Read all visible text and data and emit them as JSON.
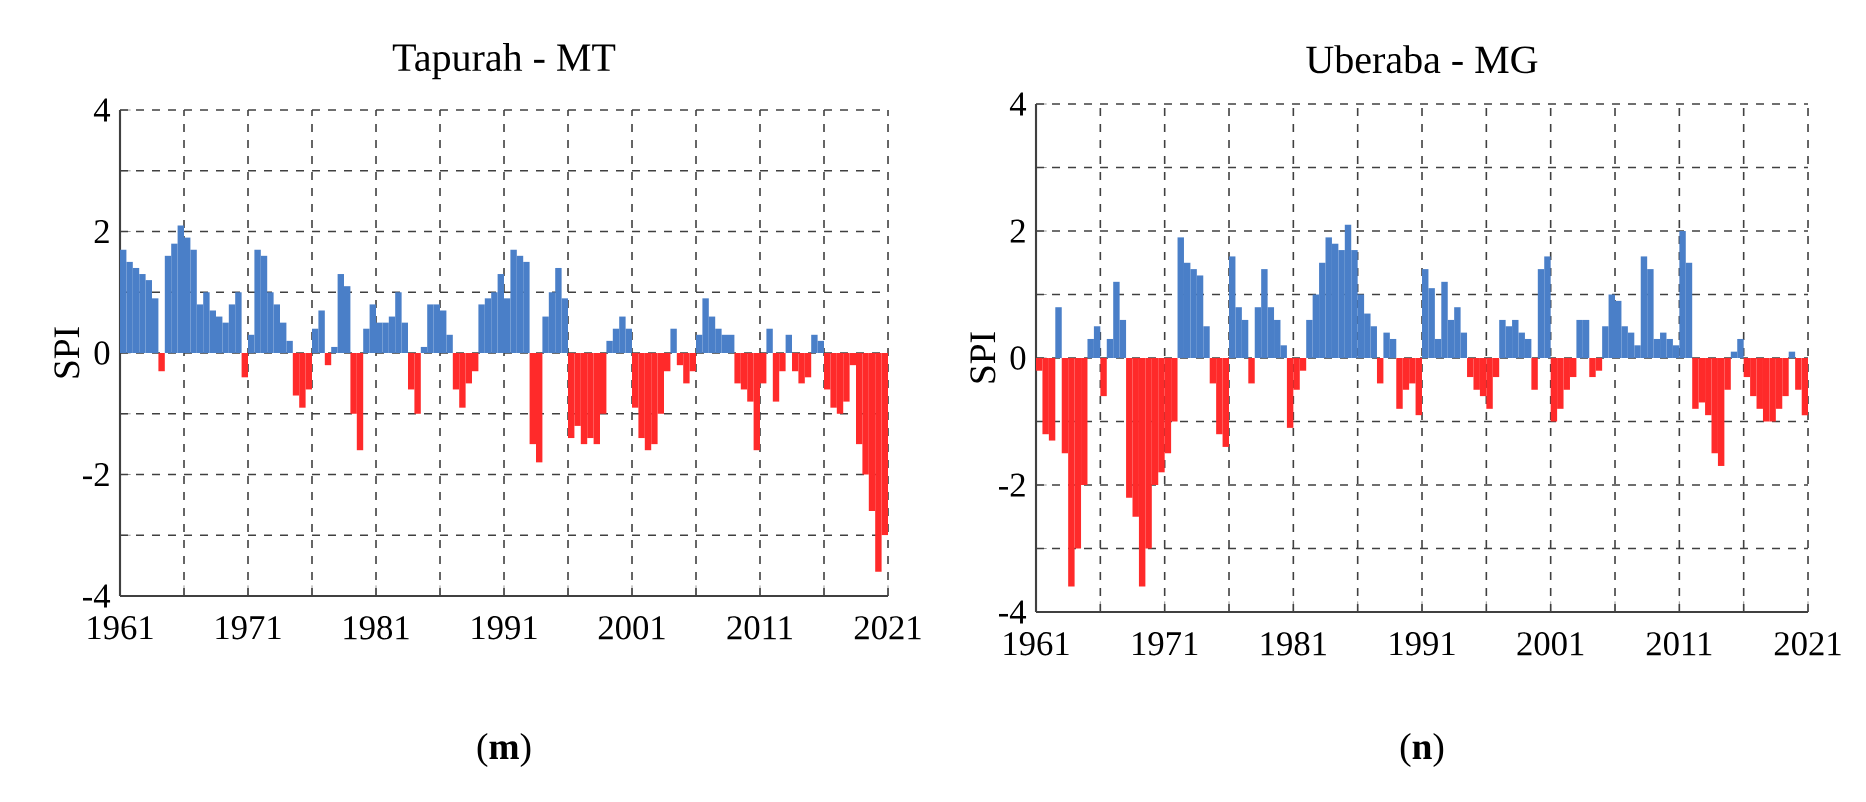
{
  "chart_data": [
    {
      "type": "bar",
      "title": "Tapurah - MT",
      "ylabel": "SPI",
      "annotations": [
        "(**m**)"
      ],
      "grid": true,
      "xlim": [
        1961,
        2021
      ],
      "ylim": [
        -4,
        4
      ],
      "xticks": [
        1961,
        {
          "value": 1966,
          "label": null
        },
        1971,
        {
          "value": 1976,
          "label": null
        },
        1981,
        {
          "value": 1986,
          "label": null
        },
        1991,
        {
          "value": 1996,
          "label": null
        },
        2001,
        {
          "value": 2006,
          "label": null
        },
        2011,
        {
          "value": 2016,
          "label": null
        },
        2021
      ],
      "yticks": [
        -4,
        {
          "value": -3,
          "label": null
        },
        -2,
        {
          "value": -1,
          "label": null
        },
        0,
        {
          "value": 1,
          "label": null
        },
        2,
        {
          "value": 3,
          "label": null
        },
        4
      ],
      "x": [
        1961.25,
        1961.75,
        1962.25,
        1962.75,
        1963.25,
        1963.75,
        1964.25,
        1964.75,
        1965.25,
        1965.75,
        1966.25,
        1966.75,
        1967.25,
        1967.75,
        1968.25,
        1968.75,
        1969.25,
        1969.75,
        1970.25,
        1970.75,
        1971.25,
        1971.75,
        1972.25,
        1972.75,
        1973.25,
        1973.75,
        1974.25,
        1974.75,
        1975.25,
        1975.75,
        1976.25,
        1976.75,
        1977.25,
        1977.75,
        1978.25,
        1978.75,
        1979.25,
        1979.75,
        1980.25,
        1980.75,
        1981.25,
        1981.75,
        1982.25,
        1982.75,
        1983.25,
        1983.75,
        1984.25,
        1984.75,
        1985.25,
        1985.75,
        1986.25,
        1986.75,
        1987.25,
        1987.75,
        1988.25,
        1988.75,
        1989.25,
        1989.75,
        1990.25,
        1990.75,
        1991.25,
        1991.75,
        1992.25,
        1992.75,
        1993.25,
        1993.75,
        1994.25,
        1994.75,
        1995.25,
        1995.75,
        1996.25,
        1996.75,
        1997.25,
        1997.75,
        1998.25,
        1998.75,
        1999.25,
        1999.75,
        2000.25,
        2000.75,
        2001.25,
        2001.75,
        2002.25,
        2002.75,
        2003.25,
        2003.75,
        2004.25,
        2004.75,
        2005.25,
        2005.75,
        2006.25,
        2006.75,
        2007.25,
        2007.75,
        2008.25,
        2008.75,
        2009.25,
        2009.75,
        2010.25,
        2010.75,
        2011.25,
        2011.75,
        2012.25,
        2012.75,
        2013.25,
        2013.75,
        2014.25,
        2014.75,
        2015.25,
        2015.75,
        2016.25,
        2016.75,
        2017.25,
        2017.75,
        2018.25,
        2018.75,
        2019.25,
        2019.75,
        2020.25,
        2020.75
      ],
      "values": [
        1.7,
        1.5,
        1.4,
        1.3,
        1.2,
        0.9,
        -0.3,
        1.6,
        1.8,
        2.1,
        1.9,
        1.7,
        0.8,
        1.0,
        0.7,
        0.6,
        0.5,
        0.8,
        1.0,
        -0.4,
        0.3,
        1.7,
        1.6,
        1.0,
        0.8,
        0.5,
        0.2,
        -0.7,
        -0.9,
        -0.6,
        0.4,
        0.7,
        -0.2,
        0.1,
        1.3,
        1.1,
        -1.0,
        -1.6,
        0.4,
        0.8,
        0.5,
        0.5,
        0.6,
        1.0,
        0.5,
        -0.6,
        -1.0,
        0.1,
        0.8,
        0.8,
        0.7,
        0.3,
        -0.6,
        -0.9,
        -0.5,
        -0.3,
        0.8,
        0.9,
        1.0,
        1.3,
        0.9,
        1.7,
        1.6,
        1.5,
        -1.5,
        -1.8,
        0.6,
        1.0,
        1.4,
        0.9,
        -1.4,
        -1.2,
        -1.5,
        -1.4,
        -1.5,
        -1.0,
        0.2,
        0.4,
        0.6,
        0.4,
        -0.9,
        -1.4,
        -1.6,
        -1.5,
        -1.0,
        -0.3,
        0.4,
        -0.2,
        -0.5,
        -0.3,
        0.3,
        0.9,
        0.6,
        0.4,
        0.3,
        0.3,
        -0.5,
        -0.6,
        -0.8,
        -1.6,
        -0.5,
        0.4,
        -0.8,
        -0.3,
        0.3,
        -0.3,
        -0.5,
        -0.4,
        0.3,
        0.2,
        -0.6,
        -0.9,
        -1.0,
        -0.8,
        -0.2,
        -1.5,
        -2.0,
        -2.6,
        -3.6,
        -3.0
      ],
      "colors": [
        "#4a7fc8",
        "#4a7fc8",
        "#4a7fc8",
        "#4a7fc8",
        "#4a7fc8",
        "#4a7fc8",
        "#ff2a2a",
        "#4a7fc8",
        "#4a7fc8",
        "#4a7fc8",
        "#4a7fc8",
        "#4a7fc8",
        "#4a7fc8",
        "#4a7fc8",
        "#4a7fc8",
        "#4a7fc8",
        "#4a7fc8",
        "#4a7fc8",
        "#4a7fc8",
        "#ff2a2a",
        "#4a7fc8",
        "#4a7fc8",
        "#4a7fc8",
        "#4a7fc8",
        "#4a7fc8",
        "#4a7fc8",
        "#4a7fc8",
        "#ff2a2a",
        "#ff2a2a",
        "#ff2a2a",
        "#4a7fc8",
        "#4a7fc8",
        "#ff2a2a",
        "#4a7fc8",
        "#4a7fc8",
        "#4a7fc8",
        "#ff2a2a",
        "#ff2a2a",
        "#4a7fc8",
        "#4a7fc8",
        "#4a7fc8",
        "#4a7fc8",
        "#4a7fc8",
        "#4a7fc8",
        "#4a7fc8",
        "#ff2a2a",
        "#ff2a2a",
        "#4a7fc8",
        "#4a7fc8",
        "#4a7fc8",
        "#4a7fc8",
        "#4a7fc8",
        "#ff2a2a",
        "#ff2a2a",
        "#ff2a2a",
        "#ff2a2a",
        "#4a7fc8",
        "#4a7fc8",
        "#4a7fc8",
        "#4a7fc8",
        "#4a7fc8",
        "#4a7fc8",
        "#4a7fc8",
        "#4a7fc8",
        "#ff2a2a",
        "#ff2a2a",
        "#4a7fc8",
        "#4a7fc8",
        "#4a7fc8",
        "#4a7fc8",
        "#ff2a2a",
        "#ff2a2a",
        "#ff2a2a",
        "#ff2a2a",
        "#ff2a2a",
        "#ff2a2a",
        "#4a7fc8",
        "#4a7fc8",
        "#4a7fc8",
        "#4a7fc8",
        "#ff2a2a",
        "#ff2a2a",
        "#ff2a2a",
        "#ff2a2a",
        "#ff2a2a",
        "#ff2a2a",
        "#4a7fc8",
        "#ff2a2a",
        "#ff2a2a",
        "#ff2a2a",
        "#4a7fc8",
        "#4a7fc8",
        "#4a7fc8",
        "#4a7fc8",
        "#4a7fc8",
        "#4a7fc8",
        "#ff2a2a",
        "#ff2a2a",
        "#ff2a2a",
        "#ff2a2a",
        "#ff2a2a",
        "#4a7fc8",
        "#ff2a2a",
        "#ff2a2a",
        "#4a7fc8",
        "#ff2a2a",
        "#ff2a2a",
        "#ff2a2a",
        "#4a7fc8",
        "#4a7fc8",
        "#ff2a2a",
        "#ff2a2a",
        "#ff2a2a",
        "#ff2a2a",
        "#ff2a2a",
        "#ff2a2a",
        "#ff2a2a",
        "#ff2a2a",
        "#ff2a2a",
        "#ff2a2a"
      ]
    },
    {
      "type": "bar",
      "title": "Uberaba - MG",
      "ylabel": "SPI",
      "annotations": [
        "(**n**)"
      ],
      "grid": true,
      "xlim": [
        1961,
        2021
      ],
      "ylim": [
        -4,
        4
      ],
      "xticks": [
        1961,
        {
          "value": 1966,
          "label": null
        },
        1971,
        {
          "value": 1976,
          "label": null
        },
        1981,
        {
          "value": 1986,
          "label": null
        },
        1991,
        {
          "value": 1996,
          "label": null
        },
        2001,
        {
          "value": 2006,
          "label": null
        },
        2011,
        {
          "value": 2016,
          "label": null
        },
        2021
      ],
      "yticks": [
        -4,
        {
          "value": -3,
          "label": null
        },
        -2,
        {
          "value": -1,
          "label": null
        },
        0,
        {
          "value": 1,
          "label": null
        },
        2,
        {
          "value": 3,
          "label": null
        },
        4
      ],
      "x": [
        1961.25,
        1961.75,
        1962.25,
        1962.75,
        1963.25,
        1963.75,
        1964.25,
        1964.75,
        1965.25,
        1965.75,
        1966.25,
        1966.75,
        1967.25,
        1967.75,
        1968.25,
        1968.75,
        1969.25,
        1969.75,
        1970.25,
        1970.75,
        1971.25,
        1971.75,
        1972.25,
        1972.75,
        1973.25,
        1973.75,
        1974.25,
        1974.75,
        1975.25,
        1975.75,
        1976.25,
        1976.75,
        1977.25,
        1977.75,
        1978.25,
        1978.75,
        1979.25,
        1979.75,
        1980.25,
        1980.75,
        1981.25,
        1981.75,
        1982.25,
        1982.75,
        1983.25,
        1983.75,
        1984.25,
        1984.75,
        1985.25,
        1985.75,
        1986.25,
        1986.75,
        1987.25,
        1987.75,
        1988.25,
        1988.75,
        1989.25,
        1989.75,
        1990.25,
        1990.75,
        1991.25,
        1991.75,
        1992.25,
        1992.75,
        1993.25,
        1993.75,
        1994.25,
        1994.75,
        1995.25,
        1995.75,
        1996.25,
        1996.75,
        1997.25,
        1997.75,
        1998.25,
        1998.75,
        1999.25,
        1999.75,
        2000.25,
        2000.75,
        2001.25,
        2001.75,
        2002.25,
        2002.75,
        2003.25,
        2003.75,
        2004.25,
        2004.75,
        2005.25,
        2005.75,
        2006.25,
        2006.75,
        2007.25,
        2007.75,
        2008.25,
        2008.75,
        2009.25,
        2009.75,
        2010.25,
        2010.75,
        2011.25,
        2011.75,
        2012.25,
        2012.75,
        2013.25,
        2013.75,
        2014.25,
        2014.75,
        2015.25,
        2015.75,
        2016.25,
        2016.75,
        2017.25,
        2017.75,
        2018.25,
        2018.75,
        2019.25,
        2019.75,
        2020.25,
        2020.75
      ],
      "values": [
        -0.2,
        -1.2,
        -1.3,
        0.8,
        -1.5,
        -3.6,
        -3.0,
        -2.0,
        0.3,
        0.5,
        -0.6,
        0.3,
        1.2,
        0.6,
        -2.2,
        -2.5,
        -3.6,
        -3.0,
        -2.0,
        -1.8,
        -1.5,
        -1.0,
        1.9,
        1.5,
        1.4,
        1.3,
        0.5,
        -0.4,
        -1.2,
        -1.4,
        1.6,
        0.8,
        0.6,
        -0.4,
        0.8,
        1.4,
        0.8,
        0.6,
        0.2,
        -1.1,
        -0.5,
        -0.2,
        0.6,
        1.0,
        1.5,
        1.9,
        1.8,
        1.7,
        2.1,
        1.7,
        1.0,
        0.7,
        0.5,
        -0.4,
        0.4,
        0.3,
        -0.8,
        -0.5,
        -0.4,
        -0.9,
        1.4,
        1.1,
        0.3,
        1.2,
        0.6,
        0.8,
        0.4,
        -0.3,
        -0.5,
        -0.6,
        -0.8,
        -0.3,
        0.6,
        0.5,
        0.6,
        0.4,
        0.3,
        -0.5,
        1.4,
        1.6,
        -1.0,
        -0.8,
        -0.5,
        -0.3,
        0.6,
        0.6,
        -0.3,
        -0.2,
        0.5,
        1.0,
        0.9,
        0.5,
        0.4,
        0.2,
        1.6,
        1.4,
        0.3,
        0.4,
        0.3,
        0.2,
        2.0,
        1.5,
        -0.8,
        -0.7,
        -0.9,
        -1.5,
        -1.7,
        -0.5,
        0.1,
        0.3,
        -0.3,
        -0.6,
        -0.8,
        -1.0,
        -1.0,
        -0.8,
        -0.6,
        0.1,
        -0.5,
        -0.9
      ],
      "colors": [
        "#ff2a2a",
        "#ff2a2a",
        "#ff2a2a",
        "#4a7fc8",
        "#ff2a2a",
        "#ff2a2a",
        "#ff2a2a",
        "#ff2a2a",
        "#4a7fc8",
        "#4a7fc8",
        "#ff2a2a",
        "#4a7fc8",
        "#4a7fc8",
        "#4a7fc8",
        "#ff2a2a",
        "#ff2a2a",
        "#ff2a2a",
        "#ff2a2a",
        "#ff2a2a",
        "#ff2a2a",
        "#ff2a2a",
        "#ff2a2a",
        "#4a7fc8",
        "#4a7fc8",
        "#4a7fc8",
        "#4a7fc8",
        "#4a7fc8",
        "#ff2a2a",
        "#ff2a2a",
        "#ff2a2a",
        "#4a7fc8",
        "#4a7fc8",
        "#4a7fc8",
        "#ff2a2a",
        "#4a7fc8",
        "#4a7fc8",
        "#4a7fc8",
        "#4a7fc8",
        "#4a7fc8",
        "#ff2a2a",
        "#ff2a2a",
        "#ff2a2a",
        "#4a7fc8",
        "#4a7fc8",
        "#4a7fc8",
        "#4a7fc8",
        "#4a7fc8",
        "#4a7fc8",
        "#4a7fc8",
        "#4a7fc8",
        "#4a7fc8",
        "#4a7fc8",
        "#4a7fc8",
        "#ff2a2a",
        "#4a7fc8",
        "#4a7fc8",
        "#ff2a2a",
        "#ff2a2a",
        "#ff2a2a",
        "#ff2a2a",
        "#4a7fc8",
        "#4a7fc8",
        "#4a7fc8",
        "#4a7fc8",
        "#4a7fc8",
        "#4a7fc8",
        "#4a7fc8",
        "#ff2a2a",
        "#ff2a2a",
        "#ff2a2a",
        "#ff2a2a",
        "#ff2a2a",
        "#4a7fc8",
        "#4a7fc8",
        "#4a7fc8",
        "#4a7fc8",
        "#4a7fc8",
        "#ff2a2a",
        "#4a7fc8",
        "#4a7fc8",
        "#ff2a2a",
        "#ff2a2a",
        "#ff2a2a",
        "#ff2a2a",
        "#4a7fc8",
        "#4a7fc8",
        "#ff2a2a",
        "#ff2a2a",
        "#4a7fc8",
        "#4a7fc8",
        "#4a7fc8",
        "#4a7fc8",
        "#4a7fc8",
        "#4a7fc8",
        "#4a7fc8",
        "#4a7fc8",
        "#4a7fc8",
        "#4a7fc8",
        "#4a7fc8",
        "#4a7fc8",
        "#4a7fc8",
        "#4a7fc8",
        "#ff2a2a",
        "#ff2a2a",
        "#ff2a2a",
        "#ff2a2a",
        "#ff2a2a",
        "#ff2a2a",
        "#4a7fc8",
        "#4a7fc8",
        "#ff2a2a",
        "#ff2a2a",
        "#ff2a2a",
        "#ff2a2a",
        "#ff2a2a",
        "#ff2a2a",
        "#ff2a2a",
        "#4a7fc8",
        "#ff2a2a",
        "#ff2a2a"
      ]
    }
  ]
}
